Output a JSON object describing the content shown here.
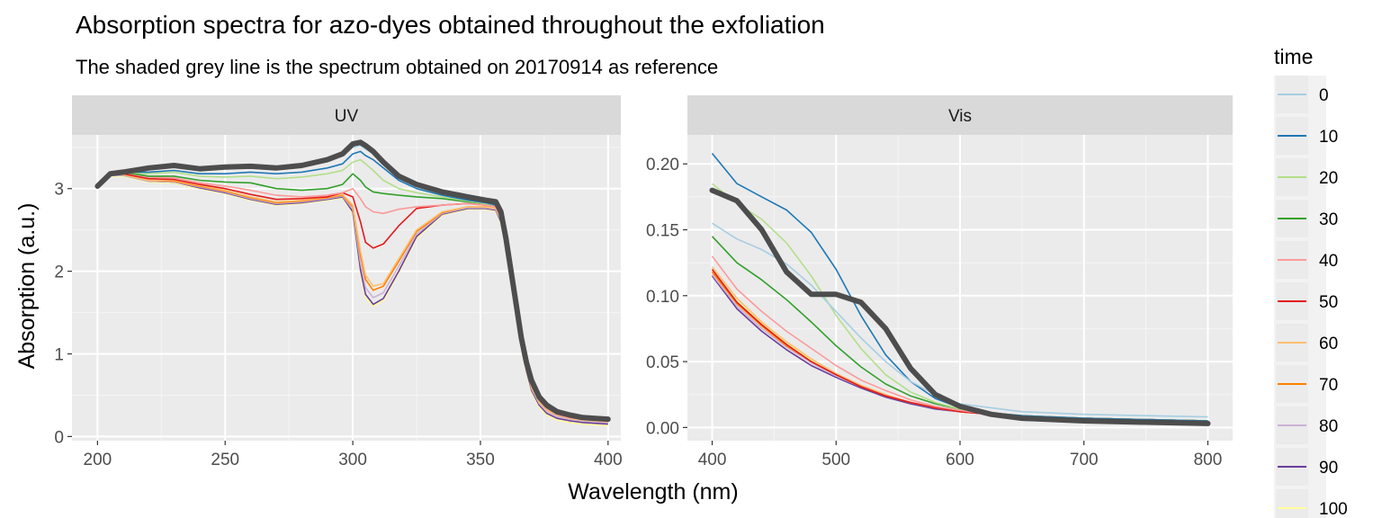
{
  "chart_data": {
    "type": "line",
    "title": "Absorption spectra for azo-dyes obtained throughout the exfoliation",
    "subtitle": "The shaded grey line is the spectrum obtained on 20170914 as reference",
    "xlabel": "Wavelength (nm)",
    "ylabel": "Absorption (a.u.)",
    "legend": {
      "title": "time",
      "position": "right",
      "entries": [
        "0",
        "10",
        "20",
        "30",
        "40",
        "50",
        "60",
        "70",
        "80",
        "90",
        "100"
      ],
      "colors": [
        "#a6cee3",
        "#1f78b4",
        "#b2df8a",
        "#33a02c",
        "#fb9a99",
        "#e31a1c",
        "#fdbf6f",
        "#ff7f00",
        "#cab2d6",
        "#6a3d9a",
        "#ffff99"
      ]
    },
    "reference_color": "#4d4d4d",
    "panels": [
      {
        "strip": "UV",
        "xlim": [
          190,
          405
        ],
        "ylim": [
          -0.05,
          3.65
        ],
        "x_ticks": [
          200,
          250,
          300,
          350,
          400
        ],
        "y_ticks": [
          0,
          1,
          2,
          3
        ],
        "grid": true,
        "x": [
          200,
          205,
          210,
          220,
          230,
          240,
          250,
          260,
          270,
          280,
          290,
          296,
          300,
          303,
          305,
          308,
          312,
          318,
          325,
          335,
          345,
          352,
          356,
          358,
          360,
          362,
          364,
          366,
          368,
          370,
          373,
          376,
          380,
          385,
          390,
          395,
          400
        ],
        "reference": [
          3.03,
          3.18,
          3.2,
          3.25,
          3.28,
          3.24,
          3.26,
          3.27,
          3.25,
          3.28,
          3.35,
          3.42,
          3.54,
          3.56,
          3.52,
          3.45,
          3.32,
          3.15,
          3.05,
          2.96,
          2.9,
          2.86,
          2.84,
          2.72,
          2.4,
          2.0,
          1.6,
          1.2,
          0.9,
          0.68,
          0.48,
          0.38,
          0.3,
          0.26,
          0.23,
          0.22,
          0.21
        ],
        "series": [
          {
            "name": "0",
            "values": [
              3.03,
              3.18,
              3.2,
              3.24,
              3.27,
              3.23,
              3.24,
              3.25,
              3.24,
              3.27,
              3.33,
              3.4,
              3.5,
              3.52,
              3.48,
              3.42,
              3.3,
              3.12,
              3.02,
              2.94,
              2.88,
              2.85,
              2.82,
              2.7,
              2.4,
              2.0,
              1.6,
              1.2,
              0.9,
              0.65,
              0.46,
              0.36,
              0.29,
              0.25,
              0.23,
              0.22,
              0.21
            ]
          },
          {
            "name": "10",
            "values": [
              3.03,
              3.18,
              3.2,
              3.2,
              3.22,
              3.18,
              3.18,
              3.2,
              3.18,
              3.2,
              3.25,
              3.3,
              3.42,
              3.45,
              3.4,
              3.35,
              3.25,
              3.1,
              3.0,
              2.92,
              2.86,
              2.83,
              2.8,
              2.68,
              2.38,
              1.98,
              1.58,
              1.18,
              0.88,
              0.64,
              0.45,
              0.35,
              0.28,
              0.24,
              0.22,
              0.21,
              0.2
            ]
          },
          {
            "name": "20",
            "values": [
              3.03,
              3.18,
              3.2,
              3.18,
              3.2,
              3.15,
              3.14,
              3.15,
              3.12,
              3.14,
              3.18,
              3.22,
              3.32,
              3.35,
              3.3,
              3.22,
              3.1,
              3.0,
              2.95,
              2.9,
              2.85,
              2.82,
              2.8,
              2.68,
              2.38,
              1.98,
              1.58,
              1.18,
              0.88,
              0.64,
              0.45,
              0.35,
              0.28,
              0.24,
              0.22,
              0.21,
              0.2
            ]
          },
          {
            "name": "30",
            "values": [
              3.03,
              3.18,
              3.2,
              3.15,
              3.15,
              3.1,
              3.08,
              3.07,
              3.0,
              2.98,
              3.0,
              3.05,
              3.18,
              3.1,
              3.02,
              2.96,
              2.94,
              2.92,
              2.9,
              2.88,
              2.84,
              2.82,
              2.8,
              2.68,
              2.38,
              1.98,
              1.58,
              1.18,
              0.88,
              0.64,
              0.45,
              0.35,
              0.28,
              0.24,
              0.22,
              0.21,
              0.2
            ]
          },
          {
            "name": "40",
            "values": [
              3.03,
              3.18,
              3.2,
              3.14,
              3.13,
              3.07,
              3.03,
              2.98,
              2.92,
              2.9,
              2.92,
              2.95,
              3.0,
              2.88,
              2.78,
              2.72,
              2.7,
              2.75,
              2.78,
              2.8,
              2.82,
              2.8,
              2.78,
              2.66,
              2.36,
              1.96,
              1.56,
              1.16,
              0.86,
              0.62,
              0.44,
              0.34,
              0.27,
              0.23,
              0.21,
              0.2,
              0.19
            ]
          },
          {
            "name": "50",
            "values": [
              3.03,
              3.18,
              3.18,
              3.12,
              3.11,
              3.05,
              3.0,
              2.93,
              2.87,
              2.88,
              2.9,
              2.95,
              2.9,
              2.6,
              2.35,
              2.28,
              2.33,
              2.55,
              2.76,
              2.8,
              2.82,
              2.8,
              2.78,
              2.66,
              2.36,
              1.96,
              1.56,
              1.16,
              0.86,
              0.62,
              0.44,
              0.34,
              0.27,
              0.23,
              0.21,
              0.2,
              0.19
            ]
          },
          {
            "name": "60",
            "values": [
              3.02,
              3.17,
              3.17,
              3.1,
              3.1,
              3.04,
              2.98,
              2.9,
              2.84,
              2.86,
              2.9,
              2.93,
              2.8,
              2.25,
              1.95,
              1.82,
              1.85,
              2.15,
              2.5,
              2.72,
              2.78,
              2.78,
              2.76,
              2.64,
              2.34,
              1.94,
              1.54,
              1.14,
              0.84,
              0.6,
              0.42,
              0.32,
              0.26,
              0.22,
              0.2,
              0.19,
              0.18
            ]
          },
          {
            "name": "70",
            "values": [
              3.02,
              3.17,
              3.17,
              3.1,
              3.09,
              3.03,
              2.97,
              2.89,
              2.83,
              2.85,
              2.89,
              2.92,
              2.78,
              2.2,
              1.9,
              1.77,
              1.82,
              2.12,
              2.48,
              2.71,
              2.78,
              2.78,
              2.76,
              2.64,
              2.34,
              1.94,
              1.54,
              1.14,
              0.84,
              0.6,
              0.42,
              0.32,
              0.26,
              0.22,
              0.2,
              0.19,
              0.18
            ]
          },
          {
            "name": "80",
            "values": [
              3.02,
              3.16,
              3.16,
              3.09,
              3.08,
              3.02,
              2.96,
              2.88,
              2.82,
              2.84,
              2.88,
              2.91,
              2.75,
              2.1,
              1.8,
              1.68,
              1.74,
              2.06,
              2.45,
              2.7,
              2.77,
              2.77,
              2.75,
              2.62,
              2.32,
              1.92,
              1.52,
              1.12,
              0.82,
              0.58,
              0.4,
              0.3,
              0.24,
              0.21,
              0.19,
              0.18,
              0.17
            ]
          },
          {
            "name": "90",
            "values": [
              3.02,
              3.16,
              3.16,
              3.09,
              3.08,
              3.01,
              2.95,
              2.87,
              2.81,
              2.83,
              2.87,
              2.9,
              2.72,
              2.02,
              1.72,
              1.6,
              1.67,
              2.0,
              2.42,
              2.69,
              2.76,
              2.76,
              2.74,
              2.6,
              2.3,
              1.9,
              1.5,
              1.1,
              0.8,
              0.56,
              0.38,
              0.28,
              0.22,
              0.19,
              0.17,
              0.16,
              0.15
            ]
          },
          {
            "name": "100",
            "values": [
              3.01,
              3.15,
              3.15,
              3.08,
              3.07,
              3.0,
              2.94,
              2.86,
              2.8,
              2.82,
              2.86,
              2.89,
              2.7,
              1.98,
              1.68,
              1.58,
              1.65,
              1.98,
              2.4,
              2.68,
              2.75,
              2.75,
              2.73,
              2.58,
              2.28,
              1.88,
              1.48,
              1.08,
              0.78,
              0.54,
              0.36,
              0.26,
              0.2,
              0.17,
              0.15,
              0.14,
              0.13
            ]
          }
        ]
      },
      {
        "strip": "Vis",
        "xlim": [
          380,
          820
        ],
        "ylim": [
          -0.01,
          0.222
        ],
        "x_ticks": [
          400,
          500,
          600,
          700,
          800
        ],
        "y_ticks": [
          0.0,
          0.05,
          0.1,
          0.15,
          0.2
        ],
        "y_tick_labels": [
          "0.00",
          "0.05",
          "0.10",
          "0.15",
          "0.20"
        ],
        "grid": true,
        "x": [
          400,
          420,
          440,
          460,
          480,
          500,
          520,
          540,
          560,
          580,
          600,
          625,
          650,
          700,
          750,
          800
        ],
        "reference": [
          0.18,
          0.172,
          0.15,
          0.118,
          0.101,
          0.101,
          0.095,
          0.075,
          0.045,
          0.025,
          0.016,
          0.01,
          0.007,
          0.005,
          0.004,
          0.003
        ],
        "series": [
          {
            "name": "0",
            "values": [
              0.155,
              0.143,
              0.135,
              0.124,
              0.108,
              0.088,
              0.068,
              0.05,
              0.035,
              0.025,
              0.018,
              0.015,
              0.012,
              0.01,
              0.009,
              0.008
            ]
          },
          {
            "name": "10",
            "values": [
              0.208,
              0.185,
              0.175,
              0.165,
              0.148,
              0.12,
              0.085,
              0.055,
              0.035,
              0.022,
              0.015,
              0.011,
              0.009,
              0.007,
              0.006,
              0.005
            ]
          },
          {
            "name": "20",
            "values": [
              0.185,
              0.17,
              0.158,
              0.14,
              0.115,
              0.085,
              0.06,
              0.04,
              0.027,
              0.019,
              0.014,
              0.011,
              0.009,
              0.007,
              0.006,
              0.005
            ]
          },
          {
            "name": "30",
            "values": [
              0.145,
              0.125,
              0.112,
              0.097,
              0.08,
              0.062,
              0.046,
              0.033,
              0.024,
              0.018,
              0.014,
              0.011,
              0.009,
              0.007,
              0.006,
              0.005
            ]
          },
          {
            "name": "40",
            "values": [
              0.13,
              0.105,
              0.088,
              0.073,
              0.06,
              0.047,
              0.036,
              0.028,
              0.021,
              0.016,
              0.013,
              0.01,
              0.009,
              0.007,
              0.006,
              0.005
            ]
          },
          {
            "name": "50",
            "values": [
              0.12,
              0.095,
              0.078,
              0.063,
              0.05,
              0.04,
              0.031,
              0.024,
              0.019,
              0.015,
              0.012,
              0.01,
              0.008,
              0.007,
              0.006,
              0.005
            ]
          },
          {
            "name": "60",
            "values": [
              0.122,
              0.098,
              0.08,
              0.065,
              0.052,
              0.041,
              0.032,
              0.025,
              0.019,
              0.015,
              0.012,
              0.01,
              0.008,
              0.007,
              0.006,
              0.005
            ]
          },
          {
            "name": "70",
            "values": [
              0.118,
              0.094,
              0.077,
              0.062,
              0.05,
              0.04,
              0.031,
              0.024,
              0.019,
              0.015,
              0.012,
              0.01,
              0.008,
              0.007,
              0.006,
              0.005
            ]
          },
          {
            "name": "80",
            "values": [
              0.116,
              0.092,
              0.075,
              0.061,
              0.049,
              0.039,
              0.031,
              0.024,
              0.019,
              0.015,
              0.012,
              0.01,
              0.008,
              0.007,
              0.006,
              0.005
            ]
          },
          {
            "name": "90",
            "values": [
              0.115,
              0.09,
              0.073,
              0.059,
              0.047,
              0.038,
              0.03,
              0.023,
              0.018,
              0.014,
              0.012,
              0.01,
              0.008,
              0.007,
              0.006,
              0.005
            ]
          },
          {
            "name": "100",
            "values": [
              0.119,
              0.096,
              0.079,
              0.064,
              0.051,
              0.041,
              0.032,
              0.025,
              0.019,
              0.015,
              0.012,
              0.01,
              0.008,
              0.007,
              0.006,
              0.005
            ]
          }
        ]
      }
    ]
  }
}
